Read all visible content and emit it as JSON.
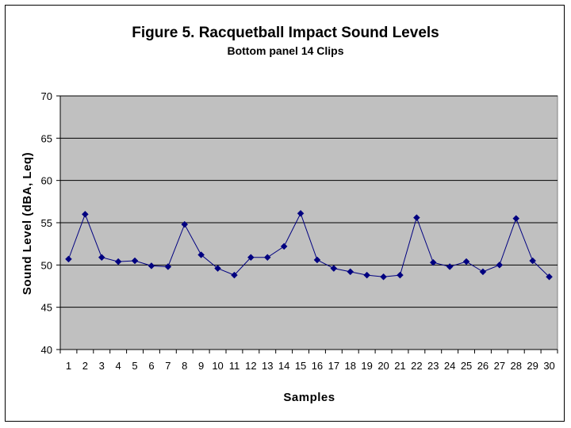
{
  "chart_data": {
    "type": "line",
    "title": "Figure 5. Racquetball Impact Sound Levels",
    "subtitle": "Bottom panel 14 Clips",
    "xlabel": "Samples",
    "ylabel": "Sound Level (dBA, Leq)",
    "ylim": [
      40,
      70
    ],
    "yticks": [
      40,
      45,
      50,
      55,
      60,
      65,
      70
    ],
    "grid": true,
    "legend": "none",
    "colors": {
      "plot_bg": "#c0c0c0",
      "series": "#000080",
      "grid": "#000000"
    },
    "x": [
      1,
      2,
      3,
      4,
      5,
      6,
      7,
      8,
      9,
      10,
      11,
      12,
      13,
      14,
      15,
      16,
      17,
      18,
      19,
      20,
      21,
      22,
      23,
      24,
      25,
      26,
      27,
      28,
      29,
      30
    ],
    "series": [
      {
        "values": [
          50.7,
          56.0,
          50.9,
          50.4,
          50.5,
          49.9,
          49.8,
          54.8,
          51.2,
          49.6,
          48.8,
          50.9,
          50.9,
          52.2,
          56.1,
          50.6,
          49.6,
          49.2,
          48.8,
          48.6,
          48.8,
          55.6,
          50.3,
          49.8,
          50.4,
          49.2,
          50.0,
          55.5,
          50.5,
          48.6
        ]
      }
    ]
  }
}
